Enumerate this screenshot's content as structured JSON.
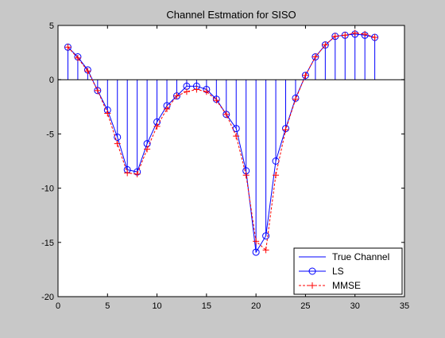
{
  "figure": {
    "background": "#c8c8c8"
  },
  "chart_data": {
    "type": "line",
    "title": "Channel Estmation for SISO",
    "xlabel": "",
    "ylabel": "",
    "xlim": [
      0,
      35
    ],
    "ylim": [
      -20,
      5
    ],
    "xticks": [
      0,
      5,
      10,
      15,
      20,
      25,
      30,
      35
    ],
    "yticks": [
      5,
      0,
      -5,
      -10,
      -15,
      -20
    ],
    "grid": false,
    "legend_position": "bottom-right",
    "x": [
      1,
      2,
      3,
      4,
      5,
      6,
      7,
      8,
      9,
      10,
      11,
      12,
      13,
      14,
      15,
      16,
      17,
      18,
      19,
      20,
      21,
      22,
      23,
      24,
      25,
      26,
      27,
      28,
      29,
      30,
      31,
      32
    ],
    "series": [
      {
        "name": "True Channel",
        "style": "stem",
        "color": "#0000ff",
        "values": [
          3.0,
          2.1,
          0.9,
          -1.0,
          -2.8,
          -5.3,
          -8.3,
          -8.5,
          -5.9,
          -3.9,
          -2.4,
          -1.5,
          -0.6,
          -0.6,
          -0.9,
          -1.8,
          -3.2,
          -4.5,
          -8.4,
          -15.9,
          -14.4,
          -7.5,
          -4.5,
          -1.7,
          0.4,
          2.1,
          3.2,
          4.0,
          4.1,
          4.2,
          4.1,
          3.9
        ]
      },
      {
        "name": "LS",
        "style": "line-circle",
        "color": "#0000ff",
        "values": [
          3.0,
          2.1,
          0.9,
          -1.0,
          -2.8,
          -5.3,
          -8.3,
          -8.5,
          -5.9,
          -3.9,
          -2.4,
          -1.5,
          -0.6,
          -0.6,
          -0.9,
          -1.8,
          -3.2,
          -4.5,
          -8.4,
          -15.9,
          -14.4,
          -7.5,
          -4.5,
          -1.7,
          0.4,
          2.1,
          3.2,
          4.0,
          4.1,
          4.2,
          4.1,
          3.9
        ]
      },
      {
        "name": "MMSE",
        "style": "dash-plus",
        "color": "#ff0000",
        "values": [
          3.0,
          2.0,
          0.8,
          -1.0,
          -3.1,
          -5.9,
          -8.6,
          -8.7,
          -6.4,
          -4.3,
          -2.7,
          -1.5,
          -1.1,
          -0.9,
          -1.1,
          -1.9,
          -3.2,
          -5.2,
          -8.8,
          -14.9,
          -15.7,
          -8.8,
          -4.6,
          -1.8,
          0.4,
          2.1,
          3.2,
          4.0,
          4.1,
          4.3,
          4.2,
          3.9
        ]
      }
    ]
  }
}
